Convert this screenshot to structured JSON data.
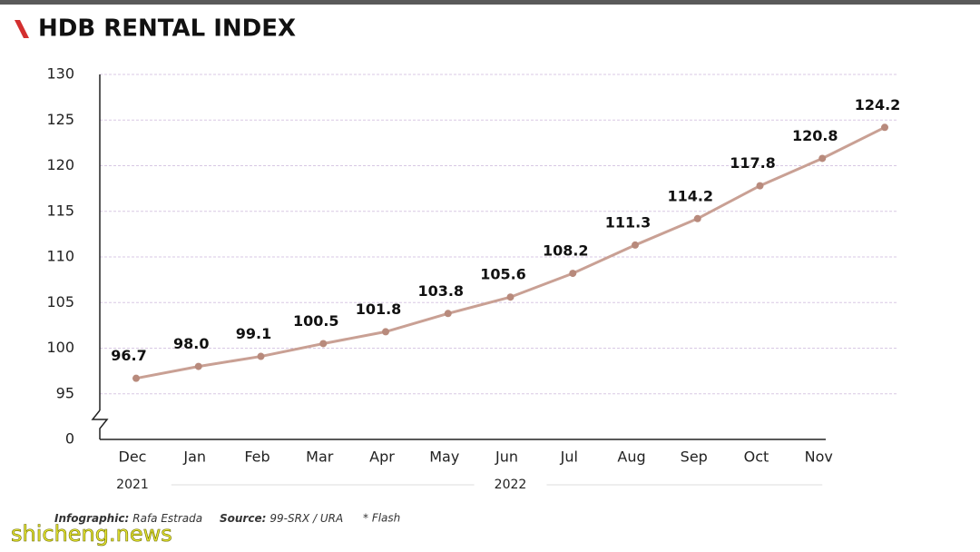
{
  "chart_data": {
    "type": "line",
    "title": "HDB RENTAL INDEX",
    "categories": [
      "Dec",
      "Jan",
      "Feb",
      "Mar",
      "Apr",
      "May",
      "Jun",
      "Jul",
      "Aug",
      "Sep",
      "Oct",
      "Nov",
      null
    ],
    "year_labels": [
      "2021",
      "2022"
    ],
    "values": [
      96.7,
      98.0,
      99.1,
      100.5,
      101.8,
      103.8,
      105.6,
      108.2,
      111.3,
      114.2,
      117.8,
      120.8,
      124.2
    ],
    "value_labels": [
      "96.7",
      "98.0",
      "99.1",
      "100.5",
      "101.8",
      "103.8",
      "105.6",
      "108.2",
      "111.3",
      "114.2",
      "117.8",
      "120.8",
      "124.2"
    ],
    "color": "#c9a094",
    "point_color": "#b88a7c",
    "ylim": [
      0,
      130
    ],
    "yticks": [
      0,
      95,
      100,
      105,
      110,
      115,
      120,
      125,
      130
    ],
    "axis_break": true,
    "grid": true,
    "footer": {
      "credits": [
        {
          "label": "Infographic:",
          "text": "Rafa Estrada"
        },
        {
          "label": "Source:",
          "text": "99-SRX / URA"
        }
      ],
      "note": "* Flash"
    },
    "watermark": "shicheng.news"
  }
}
